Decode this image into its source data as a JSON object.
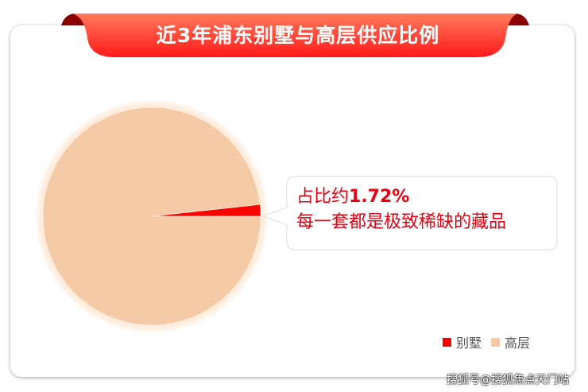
{
  "title": "近3年浦东别墅与高层供应比例",
  "callout": {
    "prefix": "占比约",
    "value": "1.72%",
    "line2": "每一套都是极致稀缺的藏品"
  },
  "watermark": "搜狐号@搜狐焦点天门站",
  "chart_data": {
    "type": "pie",
    "categories": [
      "别墅",
      "高层"
    ],
    "values": [
      1.72,
      98.28
    ],
    "colors": [
      "#ff0000",
      "#f5cba7"
    ],
    "legend_position": "bottom-right"
  }
}
